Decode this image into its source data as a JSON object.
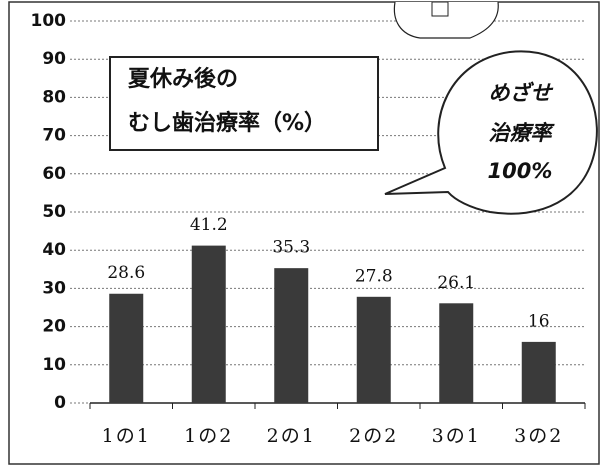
{
  "chart_data": {
    "type": "bar",
    "title_lines": [
      "夏休み後の",
      "むし歯治療率（%）"
    ],
    "callout_lines": [
      "めざせ",
      "治療率",
      "100%"
    ],
    "categories": [
      "1の1",
      "1の2",
      "2の1",
      "2の2",
      "3の1",
      "3の2"
    ],
    "values": [
      28.6,
      41.2,
      35.3,
      27.8,
      26.1,
      16
    ],
    "color": "#3a3a3a",
    "ylim": [
      0,
      100
    ],
    "yticks": [
      0,
      10,
      20,
      30,
      40,
      50,
      60,
      70,
      80,
      90,
      100
    ],
    "grid": true
  }
}
